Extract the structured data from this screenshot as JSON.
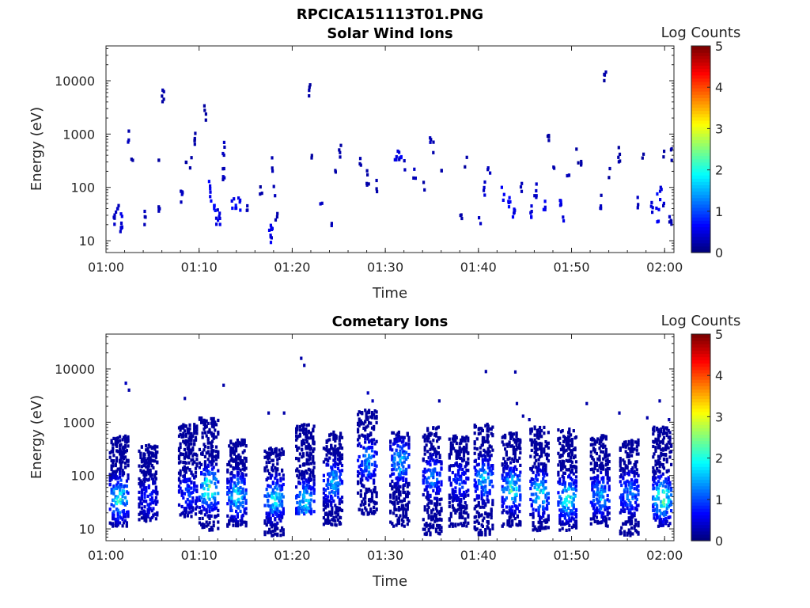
{
  "figure": {
    "title": "RPCICA151113T01.PNG"
  },
  "colorbar": {
    "label": "Log Counts",
    "ticks": [
      "0",
      "1",
      "2",
      "3",
      "4",
      "5"
    ],
    "range": [
      0,
      5
    ],
    "colormap": "jet"
  },
  "chart_data": [
    {
      "type": "heatmap",
      "title": "Solar Wind Ions",
      "xlabel": "Time",
      "ylabel": "Energy (eV)",
      "x_ticks": [
        "01:00",
        "01:10",
        "01:20",
        "01:30",
        "01:40",
        "01:50",
        "02:00"
      ],
      "y_ticks": [
        "10",
        "100",
        "1000",
        "10000"
      ],
      "y_scale": "log",
      "ylim": [
        6,
        45000
      ],
      "xlim": [
        "01:00",
        "02:00"
      ],
      "color_label": "Log Counts",
      "color_range": [
        0,
        5
      ],
      "cells": [
        [
          "01:00:45",
          25,
          0.3
        ],
        [
          "01:01:00",
          35,
          0.4
        ],
        [
          "01:01:10",
          50,
          0.3
        ],
        [
          "01:01:30",
          20,
          0.4
        ],
        [
          "01:01:30",
          30,
          0.5
        ],
        [
          "01:02:20",
          900,
          0.3
        ],
        [
          "01:02:40",
          420,
          0.2
        ],
        [
          "01:04:00",
          30,
          0.3
        ],
        [
          "01:05:30",
          35,
          0.3
        ],
        [
          "01:05:30",
          330,
          0.2
        ],
        [
          "01:06:00",
          5800,
          0.2
        ],
        [
          "01:08:00",
          80,
          0.3
        ],
        [
          "01:08:30",
          280,
          0.2
        ],
        [
          "01:09:00",
          280,
          0.2
        ],
        [
          "01:09:30",
          900,
          0.2
        ],
        [
          "01:10:30",
          2600,
          0.2
        ],
        [
          "01:11:00",
          100,
          0.6
        ],
        [
          "01:11:10",
          60,
          0.7
        ],
        [
          "01:11:30",
          45,
          0.6
        ],
        [
          "01:11:45",
          30,
          0.5
        ],
        [
          "01:12:00",
          25,
          0.5
        ],
        [
          "01:12:30",
          600,
          0.3
        ],
        [
          "01:12:30",
          200,
          0.3
        ],
        [
          "01:13:30",
          60,
          0.6
        ],
        [
          "01:13:50",
          40,
          0.7
        ],
        [
          "01:14:10",
          55,
          0.6
        ],
        [
          "01:15:00",
          35,
          0.3
        ],
        [
          "01:16:30",
          110,
          0.2
        ],
        [
          "01:17:30",
          15,
          0.5
        ],
        [
          "01:17:40",
          13,
          0.5
        ],
        [
          "01:17:40",
          300,
          0.3
        ],
        [
          "01:18:00",
          100,
          0.3
        ],
        [
          "01:18:10",
          35,
          0.3
        ],
        [
          "01:21:45",
          7200,
          0.2
        ],
        [
          "01:22:00",
          450,
          0.2
        ],
        [
          "01:23:00",
          40,
          0.4
        ],
        [
          "01:24:00",
          25,
          0.3
        ],
        [
          "01:24:30",
          230,
          0.2
        ],
        [
          "01:25:00",
          550,
          0.2
        ],
        [
          "01:27:10",
          300,
          0.2
        ],
        [
          "01:28:00",
          160,
          0.2
        ],
        [
          "01:29:00",
          110,
          0.2
        ],
        [
          "01:31:00",
          300,
          0.5
        ],
        [
          "01:31:30",
          400,
          0.6
        ],
        [
          "01:32:00",
          250,
          0.4
        ],
        [
          "01:31:20",
          500,
          0.4
        ],
        [
          "01:33:00",
          180,
          0.3
        ],
        [
          "01:34:00",
          110,
          0.2
        ],
        [
          "01:34:45",
          850,
          0.3
        ],
        [
          "01:35:00",
          600,
          0.2
        ],
        [
          "01:36:00",
          180,
          0.2
        ],
        [
          "01:38:00",
          25,
          0.2
        ],
        [
          "01:38:30",
          300,
          0.2
        ],
        [
          "01:40:00",
          25,
          0.4
        ],
        [
          "01:40:30",
          100,
          0.4
        ],
        [
          "01:41:00",
          200,
          0.3
        ],
        [
          "01:42:30",
          80,
          0.5
        ],
        [
          "01:43:10",
          50,
          0.6
        ],
        [
          "01:43:40",
          30,
          0.6
        ],
        [
          "01:44:30",
          120,
          0.3
        ],
        [
          "01:45:30",
          40,
          0.5
        ],
        [
          "01:46:00",
          90,
          0.4
        ],
        [
          "01:47:00",
          50,
          0.5
        ],
        [
          "01:47:20",
          800,
          0.2
        ],
        [
          "01:48:00",
          250,
          0.3
        ],
        [
          "01:48:40",
          60,
          0.6
        ],
        [
          "01:49:00",
          30,
          0.5
        ],
        [
          "01:49:30",
          170,
          0.3
        ],
        [
          "01:50:30",
          420,
          0.2
        ],
        [
          "01:51:00",
          250,
          0.2
        ],
        [
          "01:53:00",
          60,
          0.3
        ],
        [
          "01:53:30",
          14000,
          0.2
        ],
        [
          "01:54:00",
          230,
          0.2
        ],
        [
          "01:55:00",
          450,
          0.2
        ],
        [
          "01:57:00",
          55,
          0.3
        ],
        [
          "01:57:30",
          400,
          0.2
        ],
        [
          "01:58:30",
          40,
          0.5
        ],
        [
          "01:59:00",
          60,
          0.6
        ],
        [
          "01:59:10",
          30,
          0.6
        ],
        [
          "01:59:30",
          80,
          0.5
        ],
        [
          "01:59:45",
          45,
          0.4
        ],
        [
          "01:59:50",
          500,
          0.2
        ],
        [
          "02:00:30",
          30,
          0.3
        ],
        [
          "02:00:30",
          410,
          0.2
        ]
      ]
    },
    {
      "type": "heatmap",
      "title": "Cometary Ions",
      "xlabel": "Time",
      "ylabel": "Energy (eV)",
      "x_ticks": [
        "01:00",
        "01:10",
        "01:20",
        "01:30",
        "01:40",
        "01:50",
        "02:00"
      ],
      "y_ticks": [
        "10",
        "100",
        "1000",
        "10000"
      ],
      "y_scale": "log",
      "ylim": [
        6,
        45000
      ],
      "xlim": [
        "01:00",
        "02:00"
      ],
      "color_label": "Log Counts",
      "color_range": [
        0,
        5
      ],
      "clusters": [
        {
          "t": "01:01:20",
          "e_lo": 12,
          "e_hi": 600,
          "core": 40,
          "peak": 2.1
        },
        {
          "t": "01:04:30",
          "e_lo": 15,
          "e_hi": 400,
          "core": 40,
          "peak": 0.8
        },
        {
          "t": "01:08:45",
          "e_lo": 18,
          "e_hi": 1000,
          "core": 50,
          "peak": 1.0
        },
        {
          "t": "01:11:00",
          "e_lo": 10,
          "e_hi": 1300,
          "core": 60,
          "peak": 2.4
        },
        {
          "t": "01:14:00",
          "e_lo": 12,
          "e_hi": 500,
          "core": 45,
          "peak": 2.0
        },
        {
          "t": "01:18:00",
          "e_lo": 8,
          "e_hi": 350,
          "core": 40,
          "peak": 1.9
        },
        {
          "t": "01:21:20",
          "e_lo": 20,
          "e_hi": 1000,
          "core": 35,
          "peak": 1.8
        },
        {
          "t": "01:24:20",
          "e_lo": 12,
          "e_hi": 700,
          "core": 80,
          "peak": 1.6
        },
        {
          "t": "01:28:00",
          "e_lo": 20,
          "e_hi": 1800,
          "core": 200,
          "peak": 1.5
        },
        {
          "t": "01:31:30",
          "e_lo": 12,
          "e_hi": 700,
          "core": 200,
          "peak": 1.7
        },
        {
          "t": "01:35:00",
          "e_lo": 8,
          "e_hi": 900,
          "core": 100,
          "peak": 1.4
        },
        {
          "t": "01:37:50",
          "e_lo": 12,
          "e_hi": 600,
          "core": 80,
          "peak": 1.0
        },
        {
          "t": "01:40:30",
          "e_lo": 8,
          "e_hi": 1000,
          "core": 90,
          "peak": 1.7
        },
        {
          "t": "01:43:30",
          "e_lo": 12,
          "e_hi": 700,
          "core": 60,
          "peak": 2.1
        },
        {
          "t": "01:46:30",
          "e_lo": 10,
          "e_hi": 900,
          "core": 50,
          "peak": 2.0
        },
        {
          "t": "01:49:30",
          "e_lo": 10,
          "e_hi": 800,
          "core": 40,
          "peak": 2.2
        },
        {
          "t": "01:53:00",
          "e_lo": 12,
          "e_hi": 600,
          "core": 45,
          "peak": 1.6
        },
        {
          "t": "01:56:10",
          "e_lo": 8,
          "e_hi": 500,
          "core": 50,
          "peak": 1.5
        },
        {
          "t": "01:59:40",
          "e_lo": 12,
          "e_hi": 900,
          "core": 40,
          "peak": 2.4
        }
      ],
      "isolated_points": [
        [
          "01:02:00",
          5800,
          0.3
        ],
        [
          "01:02:20",
          4300,
          0.2
        ],
        [
          "01:08:20",
          3000,
          0.2
        ],
        [
          "01:12:30",
          5300,
          0.2
        ],
        [
          "01:17:20",
          1600,
          0.2
        ],
        [
          "01:19:00",
          1600,
          0.2
        ],
        [
          "01:20:50",
          17000,
          0.2
        ],
        [
          "01:21:10",
          12500,
          0.2
        ],
        [
          "01:28:00",
          3800,
          0.3
        ],
        [
          "01:28:30",
          2700,
          0.3
        ],
        [
          "01:35:40",
          2700,
          0.2
        ],
        [
          "01:40:40",
          9600,
          0.2
        ],
        [
          "01:43:50",
          9400,
          0.2
        ],
        [
          "01:44:00",
          2400,
          0.2
        ],
        [
          "01:44:40",
          1400,
          0.2
        ],
        [
          "01:45:20",
          1200,
          0.2
        ],
        [
          "01:51:30",
          2400,
          0.2
        ],
        [
          "01:55:00",
          1600,
          0.2
        ],
        [
          "01:58:00",
          1300,
          0.2
        ],
        [
          "01:59:20",
          2700,
          0.2
        ],
        [
          "02:00:20",
          1200,
          0.2
        ]
      ]
    }
  ]
}
